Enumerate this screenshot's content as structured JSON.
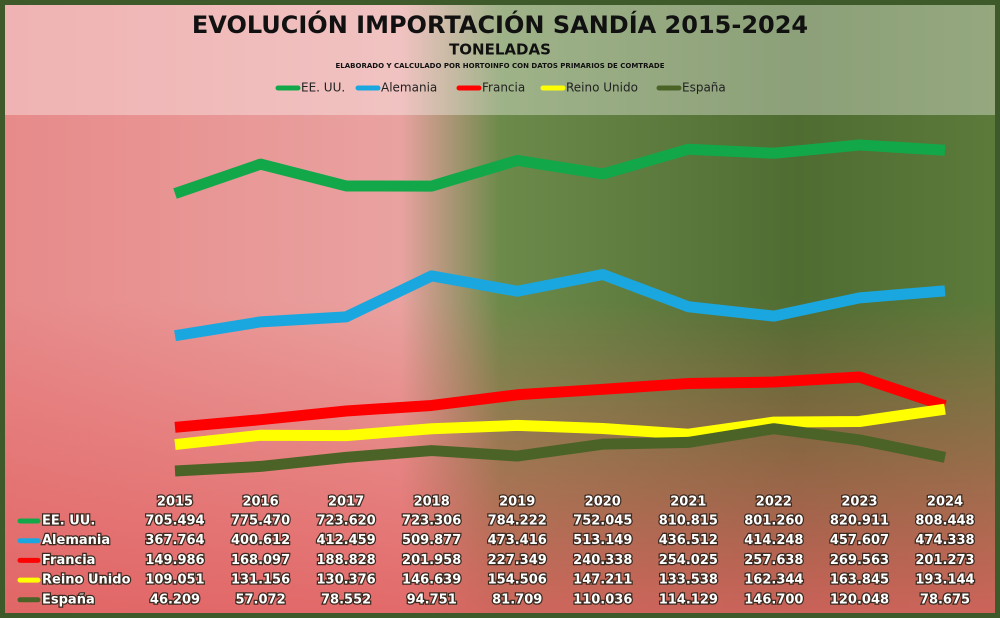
{
  "chart_data": {
    "type": "line",
    "title": "EVOLUCIÓN IMPORTACIÓN SANDÍA 2015-2024",
    "subtitle": "TONELADAS",
    "note": "ELABORADO Y CALCULADO POR HORTOINFO CON DATOS PRIMARIOS DE COMTRADE",
    "categories": [
      "2015",
      "2016",
      "2017",
      "2018",
      "2019",
      "2020",
      "2021",
      "2022",
      "2023",
      "2024"
    ],
    "series": [
      {
        "name": "EE. UU.",
        "color": "#12a84a",
        "values": [
          705494,
          775470,
          723620,
          723306,
          784222,
          752045,
          810815,
          801260,
          820911,
          808448
        ],
        "value_labels": [
          "705.494",
          "775.470",
          "723.620",
          "723.306",
          "784.222",
          "752.045",
          "810.815",
          "801.260",
          "820.911",
          "808.448"
        ]
      },
      {
        "name": "Alemania",
        "color": "#1aa7e0",
        "values": [
          367764,
          400612,
          412459,
          509877,
          473416,
          513149,
          436512,
          414248,
          457607,
          474338
        ],
        "value_labels": [
          "367.764",
          "400.612",
          "412.459",
          "509.877",
          "473.416",
          "513.149",
          "436.512",
          "414.248",
          "457.607",
          "474.338"
        ]
      },
      {
        "name": "Francia",
        "color": "#ff0000",
        "values": [
          149986,
          168097,
          188828,
          201958,
          227349,
          240338,
          254025,
          257638,
          269563,
          201273
        ],
        "value_labels": [
          "149.986",
          "168.097",
          "188.828",
          "201.958",
          "227.349",
          "240.338",
          "254.025",
          "257.638",
          "269.563",
          "201.273"
        ]
      },
      {
        "name": "Reino Unido",
        "color": "#ffff00",
        "values": [
          109051,
          131156,
          130376,
          146639,
          154506,
          147211,
          133538,
          162344,
          163845,
          193144
        ],
        "value_labels": [
          "109.051",
          "131.156",
          "130.376",
          "146.639",
          "154.506",
          "147.211",
          "133.538",
          "162.344",
          "163.845",
          "193.144"
        ]
      },
      {
        "name": "España",
        "color": "#4b6326",
        "values": [
          46209,
          57072,
          78552,
          94751,
          81709,
          110036,
          114129,
          146700,
          120048,
          78675
        ],
        "value_labels": [
          "46.209",
          "57.072",
          "78.552",
          "94.751",
          "81.709",
          "110.036",
          "114.129",
          "146.700",
          "120.048",
          "78.675"
        ]
      }
    ]
  }
}
